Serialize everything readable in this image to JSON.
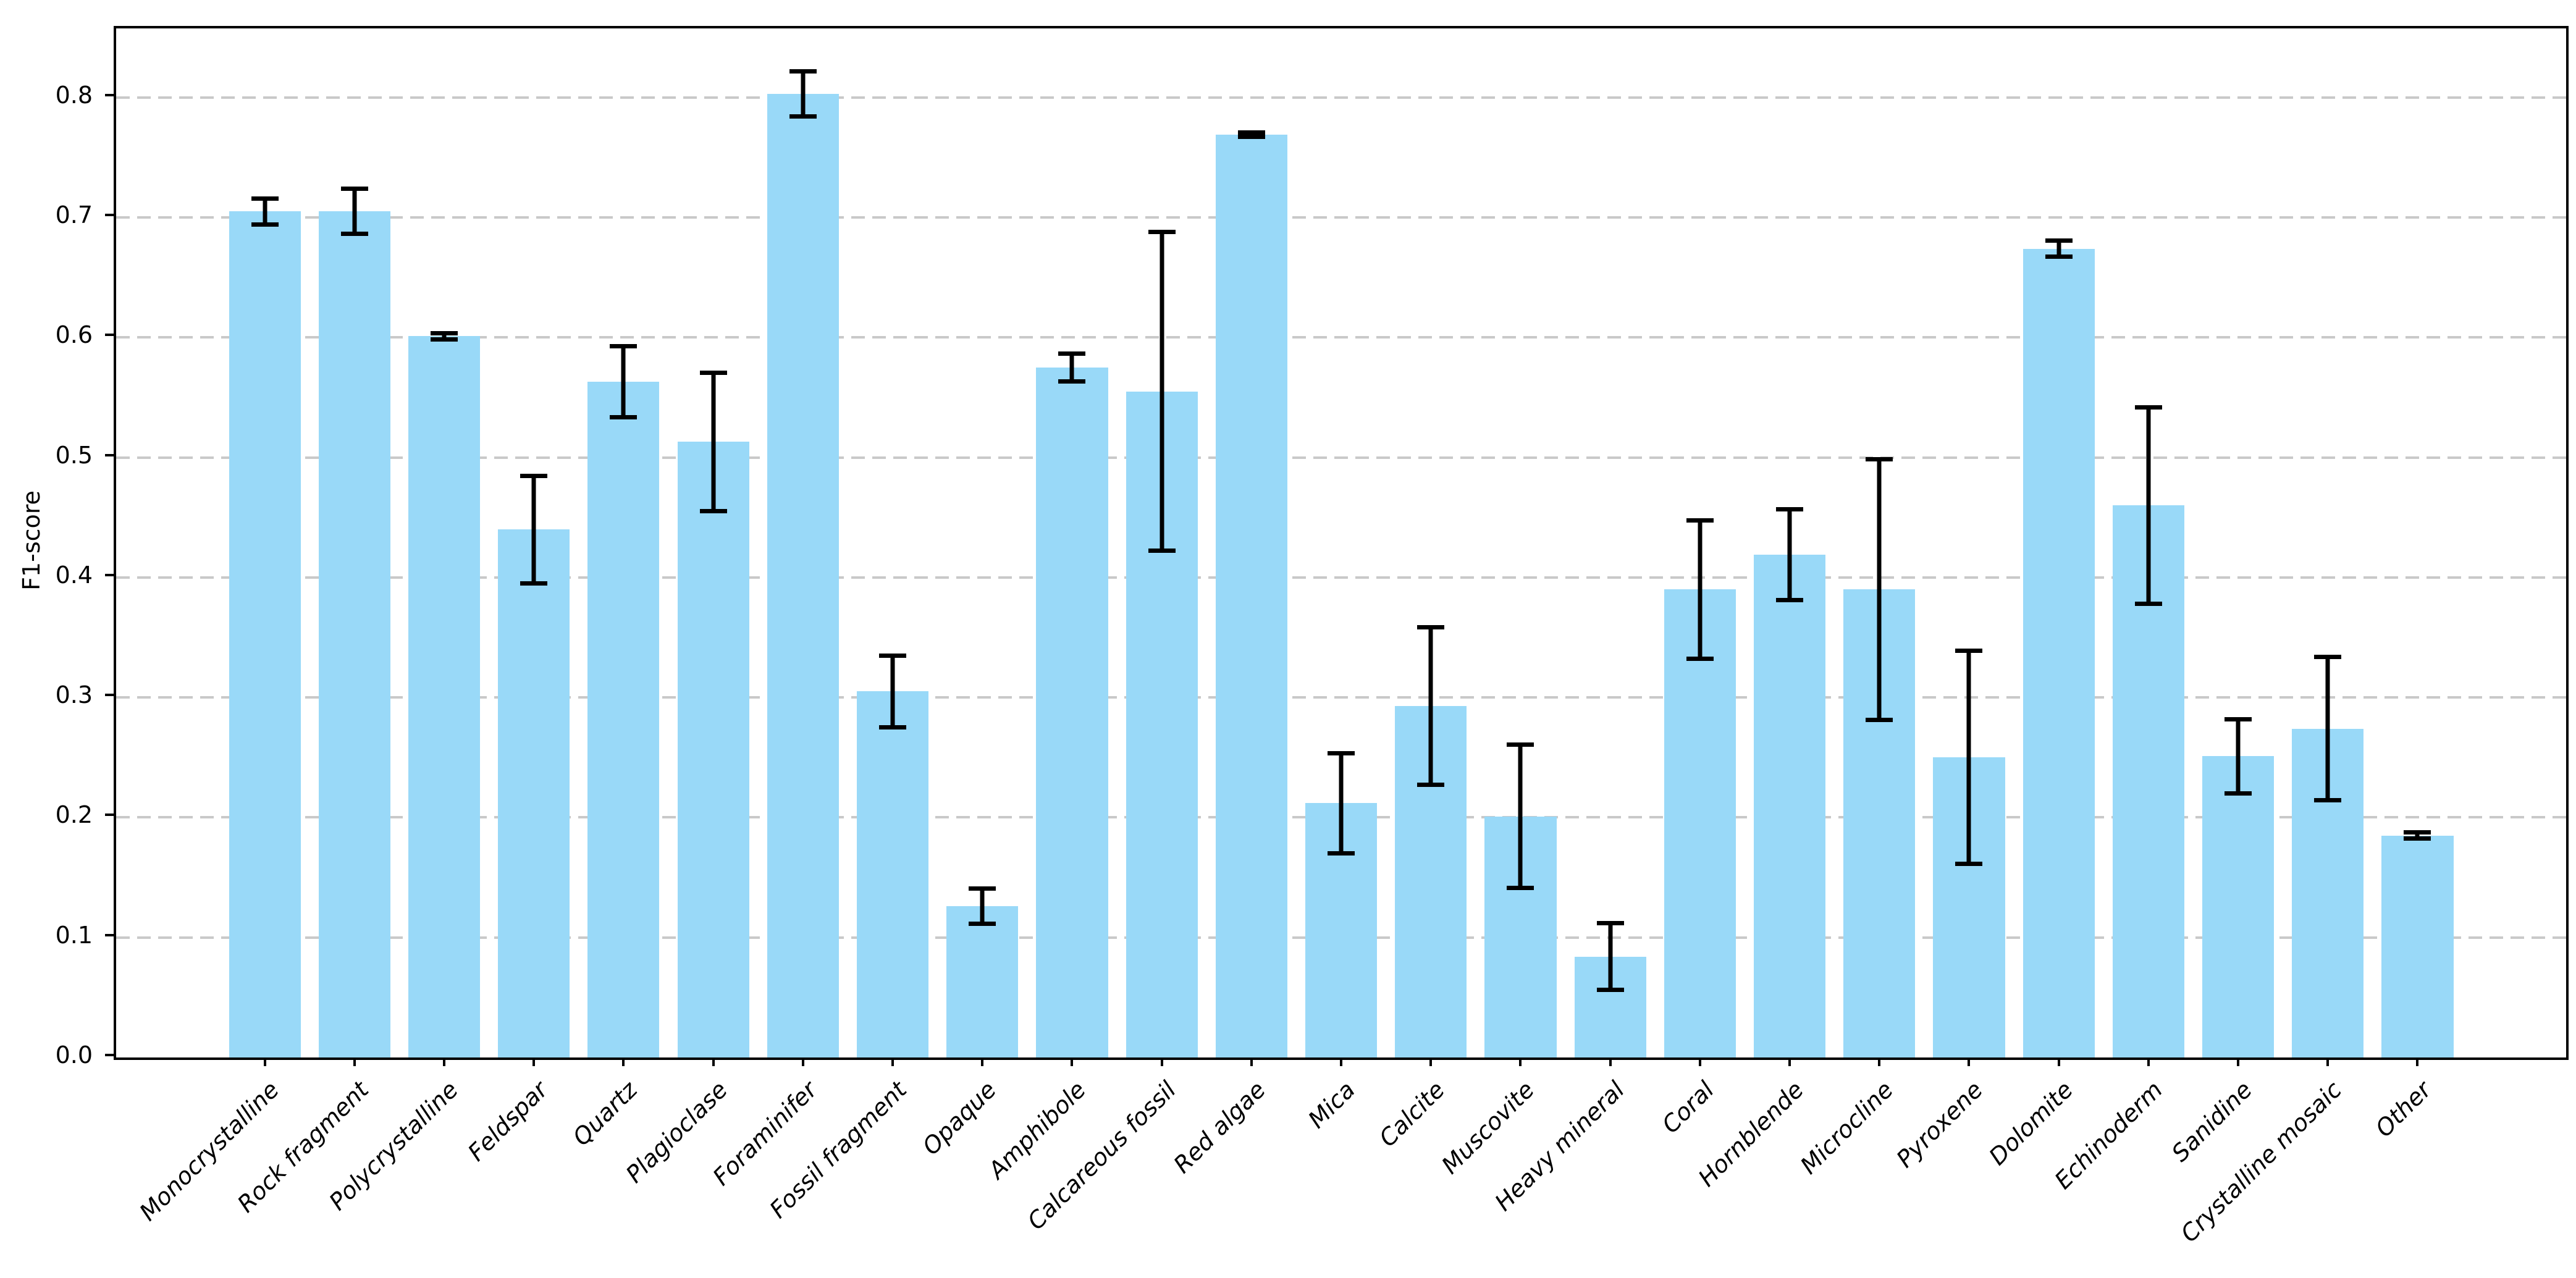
{
  "chart_data": {
    "type": "bar",
    "title": "",
    "xlabel": "",
    "ylabel": "F1-score",
    "ylim": [
      0,
      0.8575
    ],
    "grid": "horizontal-dashed",
    "legend": "none",
    "x_tick_label_style": "italic, rotated 45deg, right-anchored",
    "categories": [
      "Monocrystalline",
      "Rock fragment",
      "Polycrystalline",
      "Feldspar",
      "Quartz",
      "Plagioclase",
      "Foraminifer",
      "Fossil fragment",
      "Opaque",
      "Amphibole",
      "Calcareous fossil",
      "Red algae",
      "Mica",
      "Calcite",
      "Muscovite",
      "Heavy mineral",
      "Coral",
      "Hornblende",
      "Microcline",
      "Pyroxene",
      "Dolomite",
      "Echinoderm",
      "Sanidine",
      "Crystalline mosaic",
      "Other"
    ],
    "values": [
      0.705,
      0.705,
      0.601,
      0.44,
      0.563,
      0.513,
      0.803,
      0.305,
      0.126,
      0.575,
      0.555,
      0.769,
      0.212,
      0.293,
      0.201,
      0.084,
      0.39,
      0.419,
      0.39,
      0.25,
      0.674,
      0.46,
      0.251,
      0.274,
      0.185
    ],
    "errors": [
      0.011,
      0.019,
      0.003,
      0.045,
      0.03,
      0.058,
      0.019,
      0.03,
      0.015,
      0.012,
      0.133,
      0.002,
      0.042,
      0.066,
      0.06,
      0.028,
      0.058,
      0.038,
      0.109,
      0.089,
      0.007,
      0.082,
      0.031,
      0.06,
      0.003
    ],
    "y_ticks": [
      0.0,
      0.1,
      0.2,
      0.3,
      0.4,
      0.5,
      0.6,
      0.7,
      0.8
    ],
    "y_tick_labels": [
      "0.0",
      "0.1",
      "0.2",
      "0.3",
      "0.4",
      "0.5",
      "0.6",
      "0.7",
      "0.8"
    ],
    "colors": {
      "bar_fill": "#99d9f8",
      "error_bar": "#000000",
      "gridline": "#c9c9c9",
      "spine": "#000000",
      "text": "#000000",
      "background": "#ffffff"
    }
  }
}
